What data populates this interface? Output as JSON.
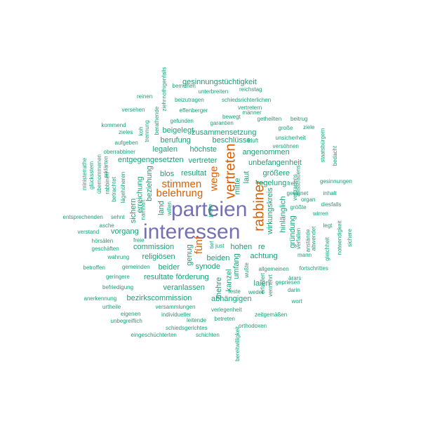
{
  "colors": {
    "large": "#7570b3",
    "medium": "#d95f02",
    "small": "#1b9e77"
  },
  "words": [
    {
      "text": "parteien",
      "size": "xl",
      "color": "large",
      "rot": false
    },
    {
      "text": "interessen",
      "size": "xl",
      "color": "large",
      "rot": false
    },
    {
      "text": "rabbiner",
      "size": "l",
      "color": "medium",
      "rot": true
    },
    {
      "text": "vertreten",
      "size": "l",
      "color": "medium",
      "rot": true
    },
    {
      "text": "wege",
      "size": "m",
      "color": "medium",
      "rot": true
    },
    {
      "text": "stimmen",
      "size": "m",
      "color": "medium",
      "rot": false
    },
    {
      "text": "belehrung",
      "size": "m",
      "color": "medium",
      "rot": false
    },
    {
      "text": "fünf",
      "size": "m",
      "color": "medium",
      "rot": true
    },
    {
      "text": "gesinnungstüchtigkeit",
      "size": "s",
      "color": "small",
      "rot": false
    },
    {
      "text": "notwendigkeit",
      "size": "xs",
      "color": "small",
      "rot": true
    },
    {
      "text": "bemühen",
      "size": "xs",
      "color": "small",
      "rot": false
    },
    {
      "text": "reichstag",
      "size": "xs",
      "color": "small",
      "rot": false
    },
    {
      "text": "unterbreiten",
      "size": "xs",
      "color": "small",
      "rot": false
    },
    {
      "text": "reinen",
      "size": "xs",
      "color": "small",
      "rot": false
    },
    {
      "text": "beizutragen",
      "size": "xs",
      "color": "small",
      "rot": false
    },
    {
      "text": "schiedsrichterlichen",
      "size": "xs",
      "color": "small",
      "rot": false
    },
    {
      "text": "vertretern",
      "size": "xs",
      "color": "small",
      "rot": false
    },
    {
      "text": "versehen",
      "size": "xs",
      "color": "small",
      "rot": false
    },
    {
      "text": "effenberger",
      "size": "xs",
      "color": "small",
      "rot": false
    },
    {
      "text": "männer",
      "size": "xs",
      "color": "small",
      "rot": false
    },
    {
      "text": "bewegt",
      "size": "xs",
      "color": "small",
      "rot": false
    },
    {
      "text": "beitrug",
      "size": "xs",
      "color": "small",
      "rot": false
    },
    {
      "text": "gefunden",
      "size": "xs",
      "color": "small",
      "rot": false
    },
    {
      "text": "garantien",
      "size": "xs",
      "color": "small",
      "rot": false
    },
    {
      "text": "getheilten",
      "size": "xs",
      "color": "small",
      "rot": false
    },
    {
      "text": "kommend",
      "size": "xs",
      "color": "small",
      "rot": false
    },
    {
      "text": "beigelegt",
      "size": "s",
      "color": "small",
      "rot": false
    },
    {
      "text": "große",
      "size": "xs",
      "color": "small",
      "rot": false
    },
    {
      "text": "ziele",
      "size": "xs",
      "color": "small",
      "rot": false
    },
    {
      "text": "zieles",
      "size": "xs",
      "color": "small",
      "rot": false
    },
    {
      "text": "zusammensetzung",
      "size": "s",
      "color": "small",
      "rot": false
    },
    {
      "text": "unsicherheit",
      "size": "xs",
      "color": "small",
      "rot": false
    },
    {
      "text": "aufgeben",
      "size": "xs",
      "color": "small",
      "rot": false
    },
    {
      "text": "berufung",
      "size": "s",
      "color": "small",
      "rot": false
    },
    {
      "text": "beschlüsse",
      "size": "s",
      "color": "small",
      "rot": false
    },
    {
      "text": "kluft",
      "size": "xs",
      "color": "small",
      "rot": false
    },
    {
      "text": "versöhnen",
      "size": "xs",
      "color": "small",
      "rot": false
    },
    {
      "text": "oberrabbiner",
      "size": "xs",
      "color": "small",
      "rot": false
    },
    {
      "text": "legalen",
      "size": "s",
      "color": "small",
      "rot": false
    },
    {
      "text": "höchste",
      "size": "s",
      "color": "small",
      "rot": false
    },
    {
      "text": "angenommen",
      "size": "s",
      "color": "small",
      "rot": false
    },
    {
      "text": "entgegengesetzten",
      "size": "s",
      "color": "small",
      "rot": false
    },
    {
      "text": "vertreter",
      "size": "s",
      "color": "small",
      "rot": false
    },
    {
      "text": "unbefangenheit",
      "size": "s",
      "color": "small",
      "rot": false
    },
    {
      "text": "bedacht",
      "size": "xs",
      "color": "small",
      "rot": true
    },
    {
      "text": "blos",
      "size": "s",
      "color": "small",
      "rot": false
    },
    {
      "text": "resultat",
      "size": "s",
      "color": "small",
      "rot": false
    },
    {
      "text": "größere",
      "size": "s",
      "color": "small",
      "rot": false
    },
    {
      "text": "gesinnungen",
      "size": "xs",
      "color": "small",
      "rot": false
    },
    {
      "text": "regelung",
      "size": "s",
      "color": "small",
      "rot": false
    },
    {
      "text": "mitte",
      "size": "s",
      "color": "small",
      "rot": true
    },
    {
      "text": "laut",
      "size": "s",
      "color": "small",
      "rot": true
    },
    {
      "text": "inhalt",
      "size": "xs",
      "color": "small",
      "rot": false
    },
    {
      "text": "geeignet",
      "size": "xs",
      "color": "small",
      "rot": false
    },
    {
      "text": "organ",
      "size": "xs",
      "color": "small",
      "rot": false
    },
    {
      "text": "diesfalls",
      "size": "xs",
      "color": "small",
      "rot": false
    },
    {
      "text": "entsprechenden",
      "size": "xs",
      "color": "small",
      "rot": false
    },
    {
      "text": "sehnt",
      "size": "xs",
      "color": "small",
      "rot": false
    },
    {
      "text": "größte",
      "size": "xs",
      "color": "small",
      "rot": false
    },
    {
      "text": "wirren",
      "size": "xs",
      "color": "small",
      "rot": false
    },
    {
      "text": "asche",
      "size": "xs",
      "color": "small",
      "rot": false
    },
    {
      "text": "verstand",
      "size": "xs",
      "color": "small",
      "rot": false
    },
    {
      "text": "vorgang",
      "size": "s",
      "color": "small",
      "rot": false
    },
    {
      "text": "hörsälen",
      "size": "xs",
      "color": "small",
      "rot": false
    },
    {
      "text": "freie",
      "size": "xs",
      "color": "small",
      "rot": false
    },
    {
      "text": "commission",
      "size": "s",
      "color": "small",
      "rot": false
    },
    {
      "text": "hohen",
      "size": "s",
      "color": "small",
      "rot": false
    },
    {
      "text": "re",
      "size": "s",
      "color": "small",
      "rot": false
    },
    {
      "text": "achtung",
      "size": "s",
      "color": "small",
      "rot": false
    },
    {
      "text": "mann",
      "size": "xs",
      "color": "small",
      "rot": false
    },
    {
      "text": "geschäften",
      "size": "xs",
      "color": "small",
      "rot": false
    },
    {
      "text": "religiösen",
      "size": "s",
      "color": "small",
      "rot": false
    },
    {
      "text": "beiden",
      "size": "s",
      "color": "small",
      "rot": false
    },
    {
      "text": "wahrung",
      "size": "xs",
      "color": "small",
      "rot": false
    },
    {
      "text": "betroffen",
      "size": "xs",
      "color": "small",
      "rot": false
    },
    {
      "text": "gemeinden",
      "size": "xs",
      "color": "small",
      "rot": false
    },
    {
      "text": "beider",
      "size": "s",
      "color": "small",
      "rot": false
    },
    {
      "text": "synode",
      "size": "s",
      "color": "small",
      "rot": false
    },
    {
      "text": "allgemeinen",
      "size": "xs",
      "color": "small",
      "rot": false
    },
    {
      "text": "fortschrittes",
      "size": "xs",
      "color": "small",
      "rot": false
    },
    {
      "text": "geringere",
      "size": "xs",
      "color": "small",
      "rot": false
    },
    {
      "text": "resultate",
      "size": "s",
      "color": "small",
      "rot": false
    },
    {
      "text": "förderung",
      "size": "s",
      "color": "small",
      "rot": false
    },
    {
      "text": "ärars",
      "size": "xs",
      "color": "small",
      "rot": false
    },
    {
      "text": "gepriesen",
      "size": "xs",
      "color": "small",
      "rot": false
    },
    {
      "text": "befriedigung",
      "size": "xs",
      "color": "small",
      "rot": false
    },
    {
      "text": "veranlassen",
      "size": "s",
      "color": "small",
      "rot": false
    },
    {
      "text": "laien",
      "size": "s",
      "color": "small",
      "rot": false
    },
    {
      "text": "darin",
      "size": "xs",
      "color": "small",
      "rot": false
    },
    {
      "text": "weder",
      "size": "xs",
      "color": "small",
      "rot": false
    },
    {
      "text": "feste",
      "size": "xs",
      "color": "small",
      "rot": false
    },
    {
      "text": "anerkennung",
      "size": "xs",
      "color": "small",
      "rot": false
    },
    {
      "text": "bezirkscommission",
      "size": "s",
      "color": "small",
      "rot": false
    },
    {
      "text": "abhängigen",
      "size": "s",
      "color": "small",
      "rot": false
    },
    {
      "text": "wort",
      "size": "xs",
      "color": "small",
      "rot": false
    },
    {
      "text": "urtheile",
      "size": "xs",
      "color": "small",
      "rot": false
    },
    {
      "text": "versammlungen",
      "size": "xs",
      "color": "small",
      "rot": false
    },
    {
      "text": "verlegenheit",
      "size": "xs",
      "color": "small",
      "rot": false
    },
    {
      "text": "zeitgemäßen",
      "size": "xs",
      "color": "small",
      "rot": false
    },
    {
      "text": "eigenen",
      "size": "xs",
      "color": "small",
      "rot": false
    },
    {
      "text": "individueller",
      "size": "xs",
      "color": "small",
      "rot": false
    },
    {
      "text": "betreten",
      "size": "xs",
      "color": "small",
      "rot": false
    },
    {
      "text": "unbegreiflich",
      "size": "xs",
      "color": "small",
      "rot": false
    },
    {
      "text": "leitende",
      "size": "xs",
      "color": "small",
      "rot": false
    },
    {
      "text": "orthodoxen",
      "size": "xs",
      "color": "small",
      "rot": false
    },
    {
      "text": "schiedsgerichtes",
      "size": "xs",
      "color": "small",
      "rot": false
    },
    {
      "text": "eingeschüchterten",
      "size": "xs",
      "color": "small",
      "rot": false
    },
    {
      "text": "schichten",
      "size": "xs",
      "color": "small",
      "rot": false
    },
    {
      "text": "nothigenfalls",
      "size": "xs",
      "color": "small",
      "rot": true
    },
    {
      "text": "ziehr",
      "size": "xs",
      "color": "small",
      "rot": true
    },
    {
      "text": "berathende",
      "size": "xs",
      "color": "small",
      "rot": true
    },
    {
      "text": "trennung",
      "size": "xs",
      "color": "small",
      "rot": true
    },
    {
      "text": "koh",
      "size": "xs",
      "color": "small",
      "rot": true
    },
    {
      "text": "ministerrathe",
      "size": "xs",
      "color": "small",
      "rot": true
    },
    {
      "text": "glücksstem",
      "size": "xs",
      "color": "small",
      "rot": true
    },
    {
      "text": "übernommenen",
      "size": "xs",
      "color": "small",
      "rot": true
    },
    {
      "text": "erklärten",
      "size": "xs",
      "color": "small",
      "rot": true
    },
    {
      "text": "rabbinen",
      "size": "xs",
      "color": "small",
      "rot": true
    },
    {
      "text": "betrachtet",
      "size": "xs",
      "color": "small",
      "rot": true
    },
    {
      "text": "lägehöheren",
      "size": "xs",
      "color": "small",
      "rot": true
    },
    {
      "text": "erreichung",
      "size": "s",
      "color": "small",
      "rot": true
    },
    {
      "text": "beziehung",
      "size": "s",
      "color": "small",
      "rot": true
    },
    {
      "text": "sichern",
      "size": "s",
      "color": "small",
      "rot": true
    },
    {
      "text": "namhaft",
      "size": "xs",
      "color": "small",
      "rot": true
    },
    {
      "text": "land",
      "size": "s",
      "color": "small",
      "rot": true
    },
    {
      "text": "willen",
      "size": "xs",
      "color": "small",
      "rot": true
    },
    {
      "text": "genug",
      "size": "s",
      "color": "small",
      "rot": true
    },
    {
      "text": "tief",
      "size": "xs",
      "color": "small",
      "rot": true
    },
    {
      "text": "just",
      "size": "xs",
      "color": "small",
      "rot": false
    },
    {
      "text": "wußte",
      "size": "xs",
      "color": "small",
      "rot": true
    },
    {
      "text": "umfang",
      "size": "s",
      "color": "small",
      "rot": true
    },
    {
      "text": "kanzel",
      "size": "s",
      "color": "small",
      "rot": true
    },
    {
      "text": "mehre",
      "size": "s",
      "color": "small",
      "rot": true
    },
    {
      "text": "erfordert",
      "size": "xs",
      "color": "small",
      "rot": true
    },
    {
      "text": "vermehrt",
      "size": "xs",
      "color": "small",
      "rot": true
    },
    {
      "text": "wirkungskreis",
      "size": "s",
      "color": "small",
      "rot": true
    },
    {
      "text": "hinlänglich",
      "size": "s",
      "color": "small",
      "rot": true
    },
    {
      "text": "gründung",
      "size": "s",
      "color": "small",
      "rot": true
    },
    {
      "text": "verfallen",
      "size": "xs",
      "color": "small",
      "rot": true
    },
    {
      "text": "anstände",
      "size": "xs",
      "color": "small",
      "rot": true
    },
    {
      "text": "abwendet",
      "size": "xs",
      "color": "small",
      "rot": true
    },
    {
      "text": "frei",
      "size": "xs",
      "color": "small",
      "rot": false
    },
    {
      "text": "vertrauens",
      "size": "xs",
      "color": "small",
      "rot": true
    },
    {
      "text": "misstrauens",
      "size": "xs",
      "color": "small",
      "rot": true
    },
    {
      "text": "gleichheit",
      "size": "xs",
      "color": "small",
      "rot": true
    },
    {
      "text": "legt",
      "size": "xs",
      "color": "small",
      "rot": false
    },
    {
      "text": "sichere",
      "size": "xs",
      "color": "small",
      "rot": true
    },
    {
      "text": "staatsbürgern",
      "size": "xs",
      "color": "small",
      "rot": true
    },
    {
      "text": "bereitwilligkeit",
      "size": "xs",
      "color": "small",
      "rot": true
    },
    {
      "text": "joske",
      "size": "xs",
      "color": "small",
      "rot": true
    }
  ]
}
